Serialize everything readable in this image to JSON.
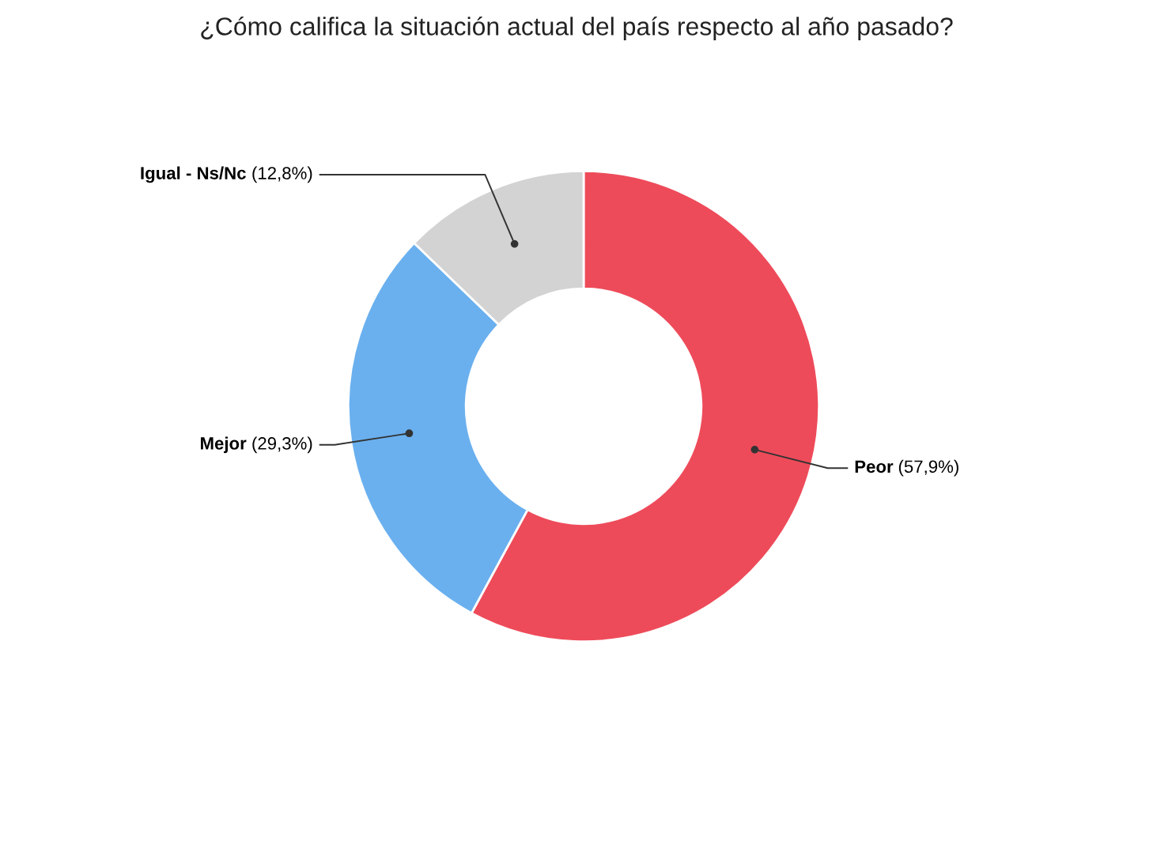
{
  "chart_data": {
    "type": "donut",
    "title": "¿Cómo califica la situación actual del país respecto al año pasado?",
    "categories": [
      "Peor",
      "Mejor",
      "Igual - Ns/Nc"
    ],
    "values": [
      57.9,
      29.3,
      12.8
    ],
    "value_labels": [
      "(57,9%)",
      "(29,3%)",
      "(12,8%)"
    ],
    "colors": [
      "#ee4b5a",
      "#6ab0ef",
      "#d3d3d3"
    ],
    "legend": false
  }
}
